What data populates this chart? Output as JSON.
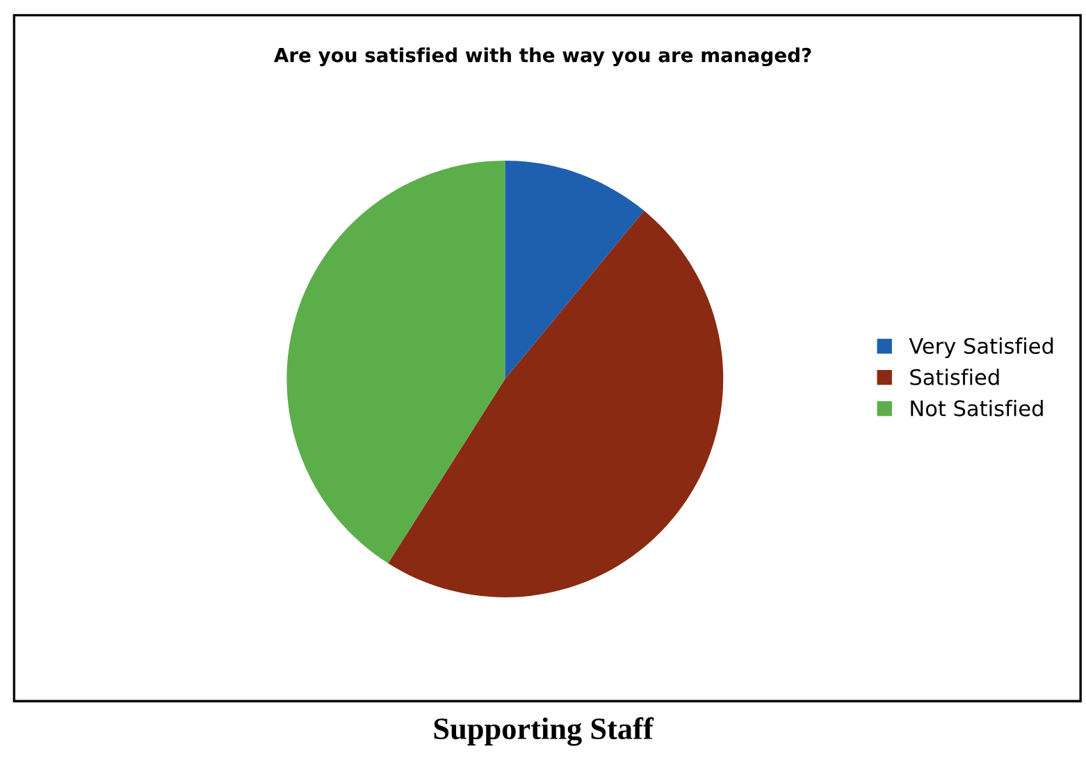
{
  "chart_data": {
    "type": "pie",
    "title": "Are you satisfied with the way you are managed?",
    "categories": [
      "Very Satisfied",
      "Satisfied",
      "Not Satisfied"
    ],
    "values": [
      11,
      48,
      41
    ],
    "colors": [
      "#1f5fb0",
      "#8a2a12",
      "#5cae4a"
    ],
    "legend": "right",
    "annotations": [
      "Supporting Staff"
    ]
  }
}
